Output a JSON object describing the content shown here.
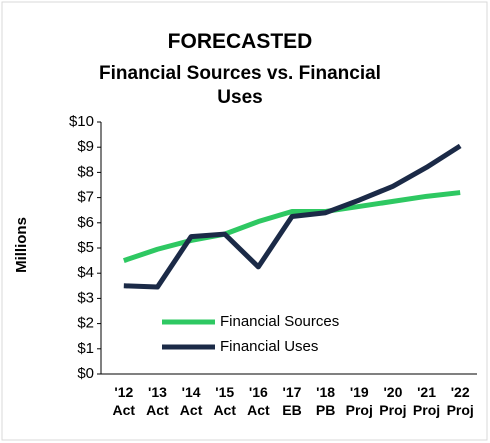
{
  "chart_data": {
    "type": "line",
    "title": "FORECASTED",
    "subtitle": "Financial Sources vs. Financial Uses",
    "y_label": "Millions",
    "categories": [
      "'12 Act",
      "'13 Act",
      "'14 Act",
      "'15 Act",
      "'16 Act",
      "'17 EB",
      "'18 PB",
      "'19 Proj",
      "'20 Proj",
      "'21 Proj",
      "'22 Proj"
    ],
    "series": [
      {
        "name": "Financial Sources",
        "color": "#2ec862",
        "values": [
          4.5,
          4.95,
          5.3,
          5.55,
          6.05,
          6.45,
          6.45,
          6.65,
          6.85,
          7.05,
          7.2
        ]
      },
      {
        "name": "Financial Uses",
        "color": "#1b2a47",
        "values": [
          3.5,
          3.45,
          5.45,
          5.55,
          4.25,
          6.25,
          6.4,
          6.9,
          7.45,
          8.2,
          9.05
        ]
      }
    ],
    "ylim": [
      0,
      10
    ],
    "yticks": [
      {
        "value": 0,
        "label": "$0"
      },
      {
        "value": 1,
        "label": "$1"
      },
      {
        "value": 2,
        "label": "$2"
      },
      {
        "value": 3,
        "label": "$3"
      },
      {
        "value": 4,
        "label": "$4"
      },
      {
        "value": 5,
        "label": "$5"
      },
      {
        "value": 6,
        "label": "$6"
      },
      {
        "value": 7,
        "label": "$7"
      },
      {
        "value": 8,
        "label": "$8"
      },
      {
        "value": 9,
        "label": "$9"
      },
      {
        "value": 10,
        "label": "$10"
      }
    ],
    "grid": false,
    "legend": "lower-center"
  }
}
